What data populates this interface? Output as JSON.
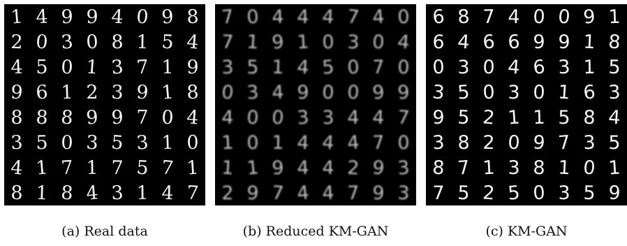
{
  "panels": [
    {
      "caption": "(a) Real data",
      "digits": [
        [
          "1",
          "4",
          "9",
          "9",
          "4",
          "0",
          "9",
          "8"
        ],
        [
          "2",
          "0",
          "3",
          "0",
          "8",
          "1",
          "5",
          "4"
        ],
        [
          "4",
          "5",
          "0",
          "1",
          "3",
          "7",
          "1",
          "9"
        ],
        [
          "9",
          "6",
          "1",
          "2",
          "3",
          "9",
          "1",
          "8"
        ],
        [
          "8",
          "8",
          "8",
          "9",
          "9",
          "7",
          "0",
          "4"
        ],
        [
          "3",
          "5",
          "0",
          "3",
          "5",
          "3",
          "1",
          "0"
        ],
        [
          "4",
          "1",
          "7",
          "1",
          "7",
          "5",
          "7",
          "1"
        ],
        [
          "8",
          "1",
          "8",
          "4",
          "3",
          "1",
          "4",
          "7"
        ]
      ]
    },
    {
      "caption": "(b) Reduced KM-GAN",
      "digits": [
        [
          "7",
          "0",
          "4",
          "4",
          "4",
          "7",
          "4",
          "0"
        ],
        [
          "7",
          "1",
          "9",
          "1",
          "0",
          "3",
          "0",
          "4"
        ],
        [
          "3",
          "5",
          "1",
          "4",
          "5",
          "0",
          "7",
          "0"
        ],
        [
          "0",
          "3",
          "4",
          "9",
          "0",
          "0",
          "9",
          "9"
        ],
        [
          "4",
          "0",
          "0",
          "3",
          "3",
          "4",
          "4",
          "7"
        ],
        [
          "1",
          "0",
          "1",
          "4",
          "4",
          "4",
          "7",
          "0"
        ],
        [
          "1",
          "1",
          "9",
          "4",
          "4",
          "2",
          "9",
          "3"
        ],
        [
          "2",
          "9",
          "7",
          "4",
          "4",
          "7",
          "9",
          "3"
        ]
      ]
    },
    {
      "caption": "(c) KM-GAN",
      "digits": [
        [
          "6",
          "8",
          "7",
          "4",
          "0",
          "0",
          "9",
          "1"
        ],
        [
          "6",
          "4",
          "6",
          "6",
          "9",
          "9",
          "1",
          "8"
        ],
        [
          "0",
          "3",
          "0",
          "4",
          "6",
          "3",
          "1",
          "5"
        ],
        [
          "3",
          "5",
          "0",
          "3",
          "0",
          "1",
          "6",
          "3"
        ],
        [
          "9",
          "5",
          "2",
          "1",
          "1",
          "5",
          "8",
          "4"
        ],
        [
          "3",
          "8",
          "2",
          "0",
          "9",
          "7",
          "3",
          "5"
        ],
        [
          "8",
          "7",
          "1",
          "3",
          "8",
          "1",
          "0",
          "1"
        ],
        [
          "7",
          "5",
          "2",
          "5",
          "0",
          "3",
          "5",
          "9"
        ]
      ]
    }
  ]
}
